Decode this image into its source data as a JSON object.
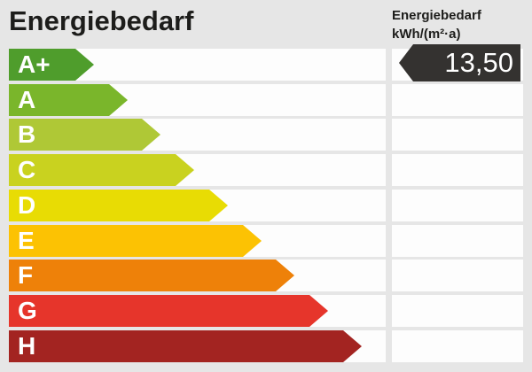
{
  "title": "Energiebedarf",
  "value_header": {
    "line1": "Energiebedarf",
    "line2": "kWh/(m²·a)"
  },
  "value_arrow": {
    "text": "13,50",
    "aligned_class": "A+",
    "color": "#343230",
    "text_color": "#ffffff"
  },
  "colors": {
    "background": "#e6e6e6",
    "row_background": "#fdfdfd",
    "heading_text": "#1d1d1b"
  },
  "scale": {
    "tip_width": 21,
    "classes": [
      {
        "label": "A+",
        "color": "#4f9d2c",
        "bar_length": 75
      },
      {
        "label": "A",
        "color": "#7ab62b",
        "bar_length": 113
      },
      {
        "label": "B",
        "color": "#afc836",
        "bar_length": 150
      },
      {
        "label": "C",
        "color": "#c9d21f",
        "bar_length": 188
      },
      {
        "label": "D",
        "color": "#e8dc04",
        "bar_length": 226
      },
      {
        "label": "E",
        "color": "#fcc203",
        "bar_length": 264
      },
      {
        "label": "F",
        "color": "#ee8109",
        "bar_length": 301
      },
      {
        "label": "G",
        "color": "#e6352b",
        "bar_length": 339
      },
      {
        "label": "H",
        "color": "#a32421",
        "bar_length": 377
      }
    ]
  },
  "chart_data": {
    "type": "bar",
    "title": "Energiebedarf",
    "unit": "kWh/(m²·a)",
    "categories": [
      "A+",
      "A",
      "B",
      "C",
      "D",
      "E",
      "F",
      "G",
      "H"
    ],
    "values": [
      75,
      113,
      150,
      188,
      226,
      264,
      301,
      339,
      377
    ],
    "bar_colors": [
      "#4f9d2c",
      "#7ab62b",
      "#afc836",
      "#c9d21f",
      "#e8dc04",
      "#fcc203",
      "#ee8109",
      "#e6352b",
      "#a32421"
    ],
    "annotation": {
      "value": "13,50",
      "rating": "A+"
    },
    "legend_position": "none",
    "grid": false
  }
}
